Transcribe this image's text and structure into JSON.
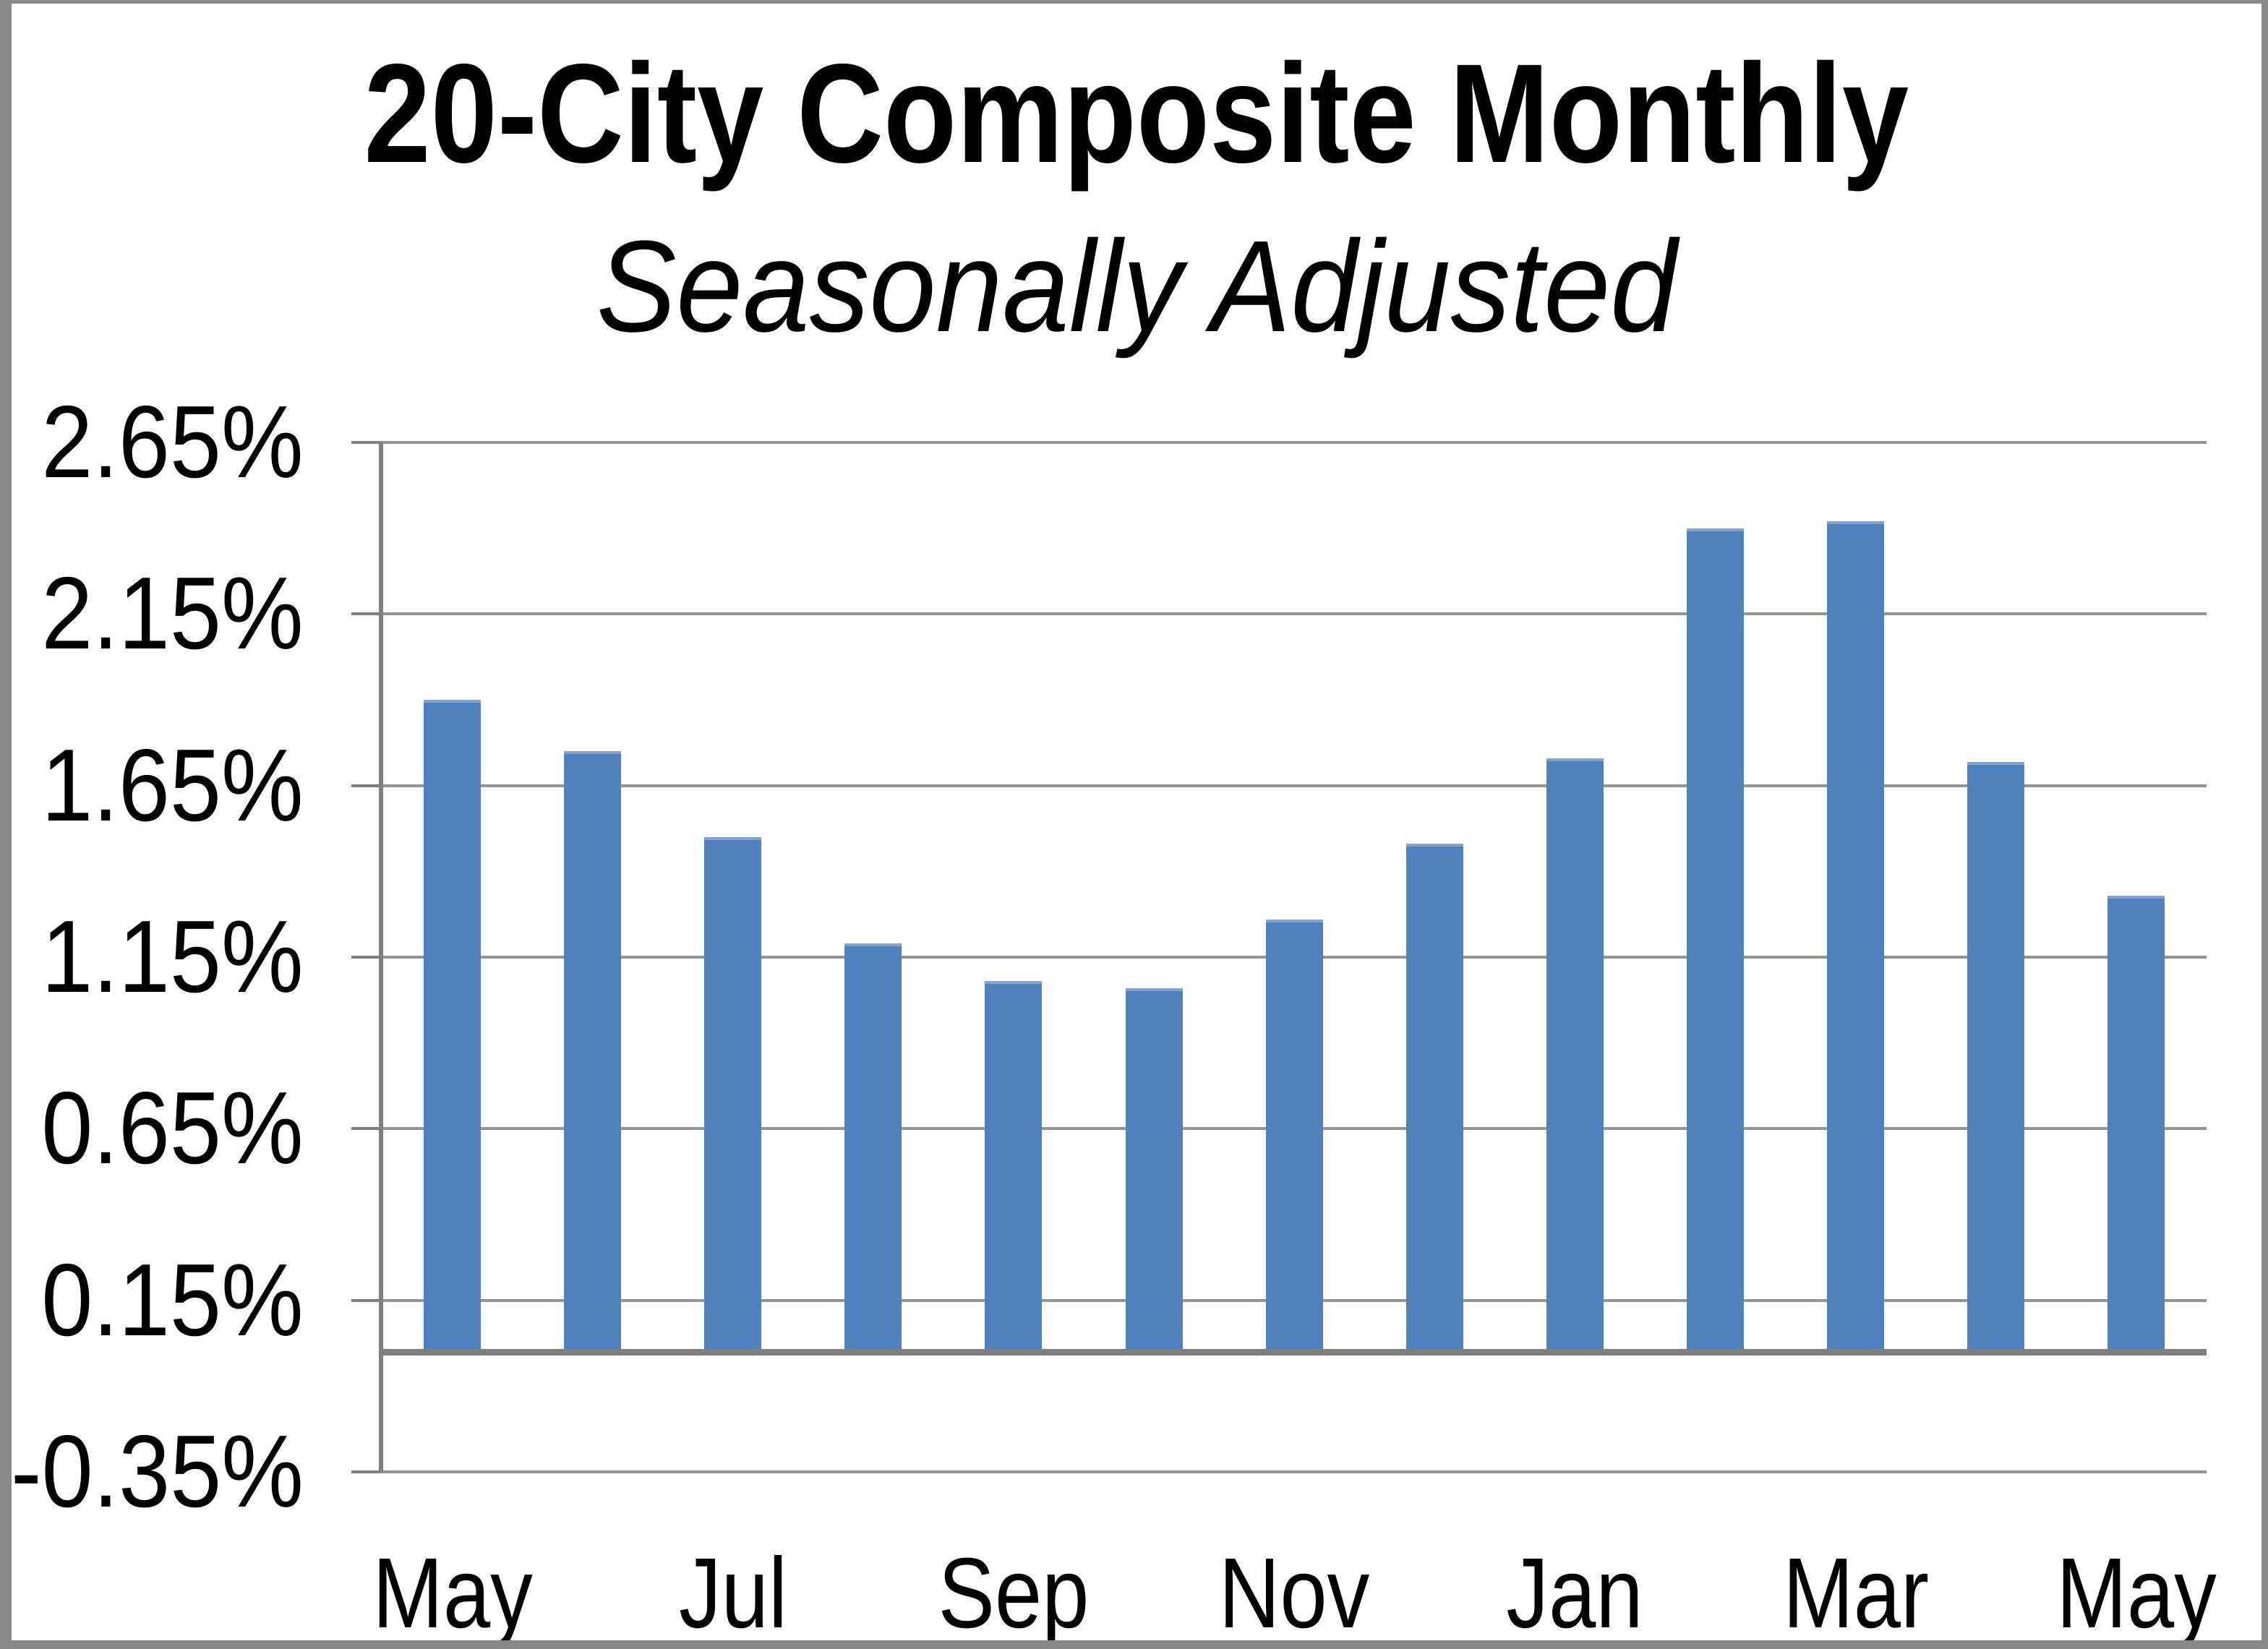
{
  "chart_data": {
    "type": "bar",
    "title": "20-City Composite Monthly",
    "subtitle": "Seasonally Adjusted",
    "categories": [
      "May",
      "",
      "Jul",
      "",
      "Sep",
      "",
      "Nov",
      "",
      "Jan",
      "",
      "Mar",
      "",
      "May"
    ],
    "values": [
      1.9,
      1.75,
      1.5,
      1.19,
      1.08,
      1.06,
      1.26,
      1.48,
      1.73,
      2.4,
      2.42,
      1.72,
      1.33
    ],
    "unit": "%",
    "y_ticks": [
      "2.65%",
      "2.15%",
      "1.65%",
      "1.15%",
      "0.65%",
      "0.15%",
      "-0.35%"
    ],
    "ylim": [
      -0.35,
      2.65
    ],
    "grid": true,
    "legend_position": "none",
    "bar_color": "#4F81BD",
    "gridline_color": "#949494",
    "axis_color": "#7F7F7F",
    "border_color": "#878787",
    "background_color": "#FFFFFF",
    "text_color": "#000000"
  }
}
